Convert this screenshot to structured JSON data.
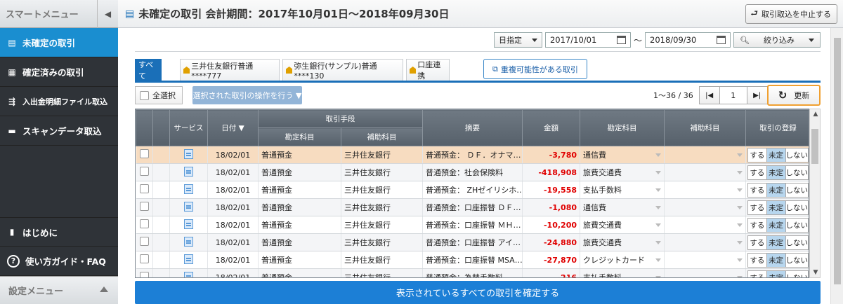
{
  "sidebar": {
    "header": "スマートメニュー",
    "items": [
      {
        "label": "未確定の取引",
        "active": true
      },
      {
        "label": "確定済みの取引"
      },
      {
        "label": "入出金明細ファイル取込"
      },
      {
        "label": "スキャンデータ取込"
      }
    ],
    "bottom_items": [
      {
        "label": "はじめに"
      },
      {
        "label": "使い方ガイド・FAQ"
      }
    ],
    "footer": "設定メニュー"
  },
  "header": {
    "title": "未確定の取引 会計期間：2017年10月01日～2018年09月30日",
    "stop_button": "取引取込を中止する"
  },
  "filter": {
    "mode": "日指定",
    "date_from": "2017/10/01",
    "separator": "～",
    "date_to": "2018/09/30",
    "narrow_button": "絞り込み"
  },
  "tabs": [
    {
      "label": "すべて",
      "active": true
    },
    {
      "label": "三井住友銀行普通****777"
    },
    {
      "label": "弥生銀行(サンプル)普通****130"
    },
    {
      "label": "口座連携"
    }
  ],
  "duplicate_button": "重複可能性がある取引",
  "toolbar": {
    "select_all": "全選択",
    "ops_button": "選択された取引の操作を行う ▼",
    "page_count": "1～36 / 36",
    "page_number": "1",
    "refresh": "更新"
  },
  "table": {
    "headers": {
      "service": "サービス",
      "date": "日付 ▼",
      "method": "取引手段",
      "method_account": "勘定科目",
      "method_sub": "補助科目",
      "summary": "摘要",
      "amount": "金額",
      "account": "勘定科目",
      "sub_account": "補助科目",
      "register": "取引の登録"
    },
    "register_options": [
      "する",
      "未定",
      "しない"
    ],
    "rows": [
      {
        "date": "18/02/01",
        "method_account": "普通預金",
        "method_sub": "三井住友銀行",
        "summary": "普通預金： ＤＦ．オナマ…",
        "amount": "-3,780",
        "account": "通信費",
        "highlight": true
      },
      {
        "date": "18/02/01",
        "method_account": "普通預金",
        "method_sub": "三井住友銀行",
        "summary": "普通預金：社会保険料",
        "amount": "-418,908",
        "account": "旅費交通費"
      },
      {
        "date": "18/02/01",
        "method_account": "普通預金",
        "method_sub": "三井住友銀行",
        "summary": "普通預金： ZHゼイリシホ…",
        "amount": "-19,558",
        "account": "支払手数料"
      },
      {
        "date": "18/02/01",
        "method_account": "普通預金",
        "method_sub": "三井住友銀行",
        "summary": "普通預金：口座振替 ＤＦ…",
        "amount": "-1,080",
        "account": "通信費"
      },
      {
        "date": "18/02/01",
        "method_account": "普通預金",
        "method_sub": "三井住友銀行",
        "summary": "普通預金：口座振替 ＭＨ…",
        "amount": "-10,200",
        "account": "旅費交通費"
      },
      {
        "date": "18/02/01",
        "method_account": "普通預金",
        "method_sub": "三井住友銀行",
        "summary": "普通預金：口座振替 アイ…",
        "amount": "-24,880",
        "account": "旅費交通費"
      },
      {
        "date": "18/02/01",
        "method_account": "普通預金",
        "method_sub": "三井住友銀行",
        "summary": "普通預金：口座振替 MSA…",
        "amount": "-27,870",
        "account": "クレジットカード"
      },
      {
        "date": "18/02/01",
        "method_account": "普通預金",
        "method_sub": "三井住友銀行",
        "summary": "普通預金：為替手数料",
        "amount": "-216",
        "account": "支払手数料"
      }
    ]
  },
  "confirm_button": "表示されているすべての取引を確定する"
}
